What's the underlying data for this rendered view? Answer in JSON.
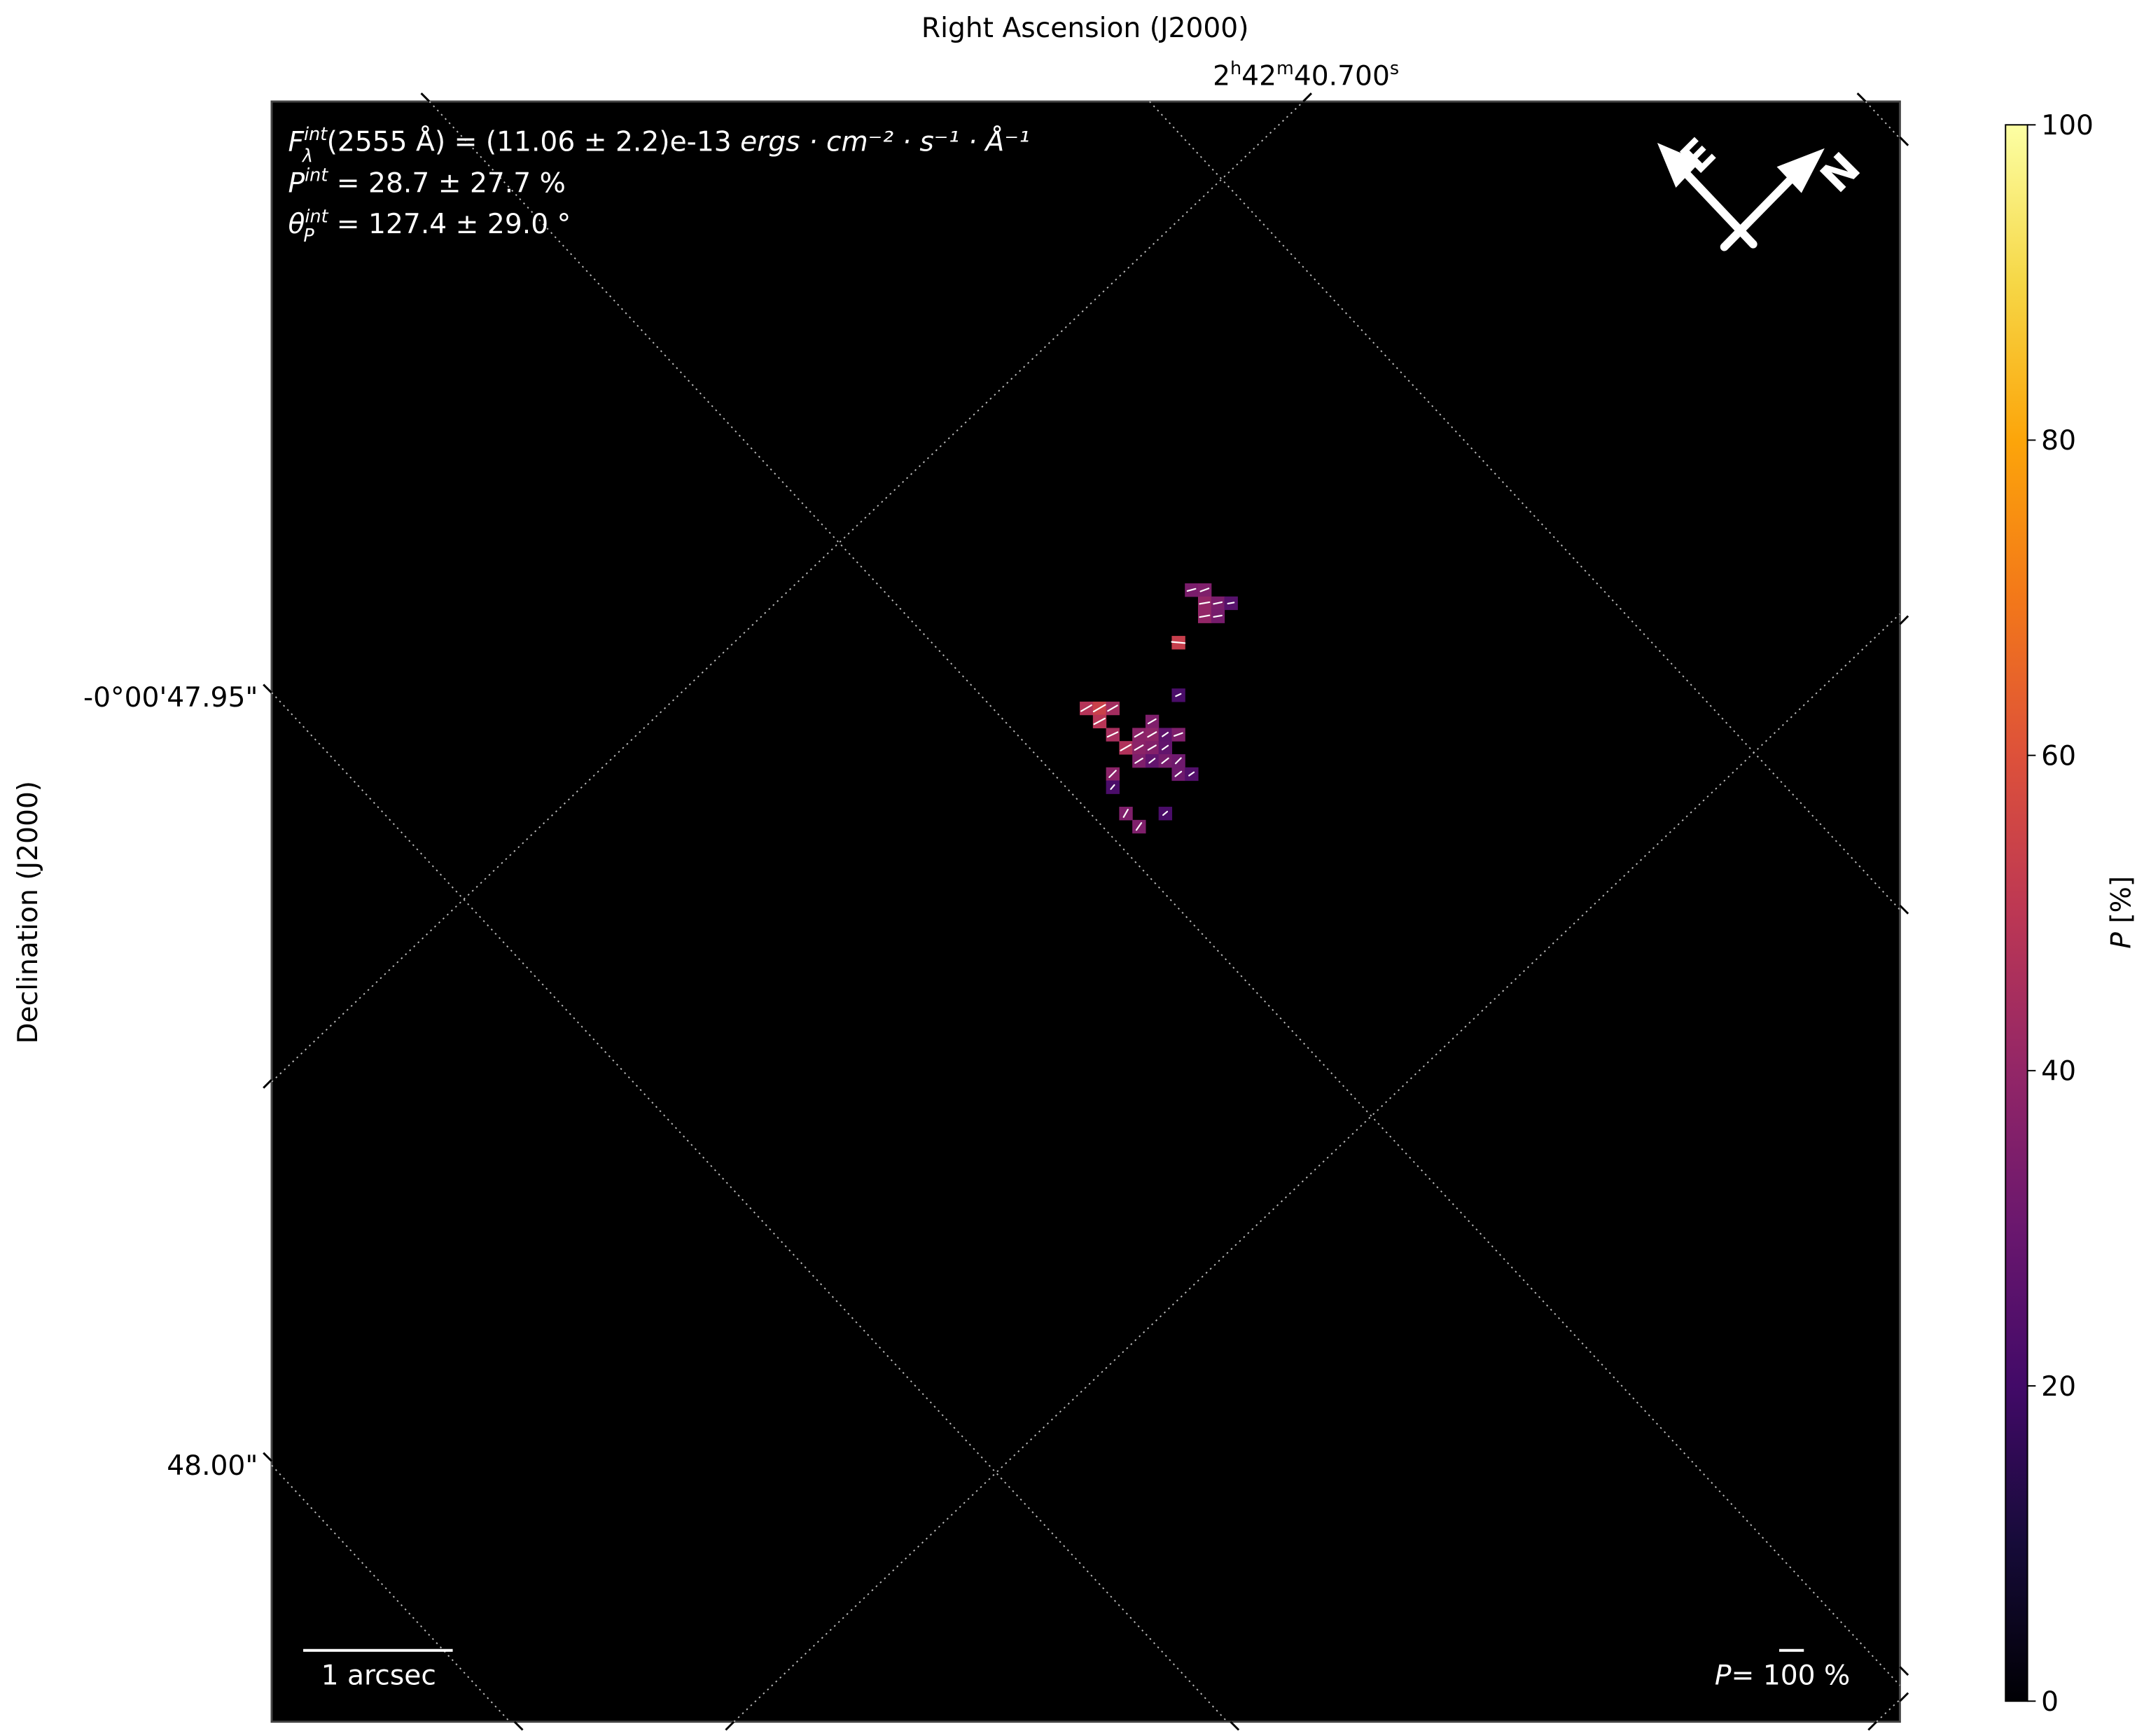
{
  "chart_data": {
    "type": "heatmap",
    "xlabel": "Right Ascension (J2000)",
    "ylabel": "Declination (J2000)",
    "x_tick_labels": [
      {
        "h": "2",
        "m": "42",
        "s": "40.700"
      }
    ],
    "y_tick_labels": [
      "-0°00'47.95\"",
      "48.00\""
    ],
    "background_color": "#000000",
    "grid": "dotted",
    "grid_color": "#bbbbbb",
    "colormap": "inferno",
    "colorbar": {
      "label_symbol": "P",
      "label_unit": " [%]",
      "range": [
        0,
        100
      ],
      "ticks": [
        "0",
        "20",
        "40",
        "60",
        "80",
        "100"
      ],
      "position": "right"
    },
    "annotations": {
      "flux": {
        "symbol": "F",
        "sup": "int",
        "sub": "λ",
        "text": "(2555 Å) = (11.06 ± 2.2)e-13 ",
        "units": "ergs · cm⁻² · s⁻¹ · Å⁻¹"
      },
      "pol_deg": {
        "symbol": "P",
        "sup": "int",
        "text": " = 28.7 ± 27.7 %"
      },
      "pol_ang": {
        "symbol": "θ",
        "sup": "int",
        "sub": "P",
        "text": " = 127.4 ± 29.0 °"
      }
    },
    "compass": {
      "east": "E",
      "north": "N"
    },
    "scale_bar": "1 arcsec",
    "vector_legend": {
      "symbol": "P",
      "eq": "= ",
      "value": "100",
      "unit": " %"
    },
    "pixels_note_units": "P in %, angle in degrees (vector orientation on image)",
    "pixels": [
      {
        "col": 8,
        "row": 0,
        "P": 34,
        "angle": 15
      },
      {
        "col": 9,
        "row": 0,
        "P": 35,
        "angle": 20
      },
      {
        "col": 9,
        "row": 1,
        "P": 40,
        "angle": 10
      },
      {
        "col": 10,
        "row": 1,
        "P": 34,
        "angle": 12
      },
      {
        "col": 11,
        "row": 1,
        "P": 25,
        "angle": 10
      },
      {
        "col": 9,
        "row": 2,
        "P": 40,
        "angle": 10
      },
      {
        "col": 10,
        "row": 2,
        "P": 33,
        "angle": 10
      },
      {
        "col": 7,
        "row": 4,
        "P": 53,
        "angle": -5
      },
      {
        "col": 7,
        "row": 8,
        "P": 22,
        "angle": 25
      },
      {
        "col": 0,
        "row": 9,
        "P": 48,
        "angle": 30
      },
      {
        "col": 1,
        "row": 9,
        "P": 54,
        "angle": 30
      },
      {
        "col": 2,
        "row": 9,
        "P": 44,
        "angle": 30
      },
      {
        "col": 1,
        "row": 10,
        "P": 49,
        "angle": 28
      },
      {
        "col": 5,
        "row": 10,
        "P": 35,
        "angle": 30
      },
      {
        "col": 2,
        "row": 11,
        "P": 45,
        "angle": 25
      },
      {
        "col": 4,
        "row": 11,
        "P": 38,
        "angle": 30
      },
      {
        "col": 5,
        "row": 11,
        "P": 39,
        "angle": 30
      },
      {
        "col": 6,
        "row": 11,
        "P": 27,
        "angle": 35
      },
      {
        "col": 7,
        "row": 11,
        "P": 35,
        "angle": 20
      },
      {
        "col": 3,
        "row": 12,
        "P": 47,
        "angle": 30
      },
      {
        "col": 4,
        "row": 12,
        "P": 38,
        "angle": 30
      },
      {
        "col": 5,
        "row": 12,
        "P": 36,
        "angle": 30
      },
      {
        "col": 6,
        "row": 12,
        "P": 28,
        "angle": 35
      },
      {
        "col": 4,
        "row": 13,
        "P": 35,
        "angle": 32
      },
      {
        "col": 5,
        "row": 13,
        "P": 28,
        "angle": 38
      },
      {
        "col": 6,
        "row": 13,
        "P": 33,
        "angle": 38
      },
      {
        "col": 7,
        "row": 13,
        "P": 31,
        "angle": 45
      },
      {
        "col": 2,
        "row": 14,
        "P": 38,
        "angle": 45
      },
      {
        "col": 7,
        "row": 14,
        "P": 31,
        "angle": 38
      },
      {
        "col": 8,
        "row": 14,
        "P": 24,
        "angle": 35
      },
      {
        "col": 2,
        "row": 15,
        "P": 22,
        "angle": 50
      },
      {
        "col": 3,
        "row": 17,
        "P": 35,
        "angle": 60
      },
      {
        "col": 6,
        "row": 17,
        "P": 22,
        "angle": 40
      },
      {
        "col": 4,
        "row": 18,
        "P": 35,
        "angle": 55
      }
    ]
  }
}
